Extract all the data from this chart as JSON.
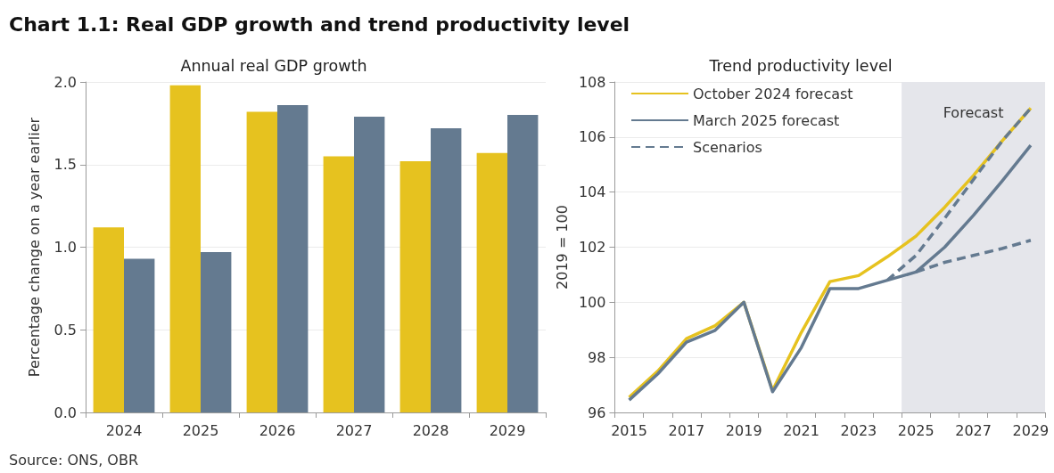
{
  "chart_data": [
    {
      "type": "bar",
      "title": "Annual real GDP growth",
      "ylabel": "Percentage change on a year earlier",
      "categories": [
        "2024",
        "2025",
        "2026",
        "2027",
        "2028",
        "2029"
      ],
      "series": [
        {
          "color": "#e6c21f",
          "values": [
            1.12,
            1.98,
            1.82,
            1.55,
            1.52,
            1.57
          ]
        },
        {
          "color": "#647a90",
          "values": [
            0.93,
            0.97,
            1.86,
            1.79,
            1.72,
            1.8
          ]
        }
      ],
      "ylim": [
        0,
        2
      ],
      "yticks": [
        {
          "value": 0,
          "label": "0.0"
        },
        0.5,
        {
          "value": 1,
          "label": "1.0"
        },
        1.5,
        {
          "value": 2,
          "label": "2.0"
        }
      ],
      "grid": "y",
      "legend": false,
      "annotations": [
        "Chart 1.1: Real GDP growth and trend productivity level",
        "Source: ONS, OBR"
      ]
    },
    {
      "type": "line",
      "title": "Trend productivity level",
      "ylabel": "2019 = 100",
      "categories": [
        "2015",
        null,
        "2017",
        null,
        "2019",
        null,
        "2021",
        null,
        "2023",
        null,
        "2025",
        null,
        "2027",
        null,
        "2029"
      ],
      "series": [
        {
          "name": "October 2024 forecast",
          "color": "#e6c21f",
          "values": [
            96.55,
            97.5,
            98.68,
            99.15,
            100,
            96.8,
            98.9,
            100.75,
            100.97,
            101.65,
            102.4,
            103.45,
            104.6,
            105.85,
            107.05
          ]
        },
        {
          "name": "March 2025 forecast",
          "color": "#647a90",
          "values": [
            96.45,
            97.4,
            98.55,
            98.98,
            100,
            96.75,
            98.35,
            100.5,
            100.5,
            100.8,
            101.1,
            102.0,
            103.15,
            104.4,
            105.7
          ]
        },
        {
          "name": "Scenarios",
          "color": "#647a90",
          "line_style": "dashed",
          "values": [
            null,
            null,
            null,
            null,
            null,
            null,
            null,
            null,
            null,
            100.8,
            101.7,
            103.05,
            104.45,
            105.85,
            107.05
          ]
        },
        {
          "color": "#647a90",
          "line_style": "dashed",
          "values": [
            null,
            null,
            null,
            null,
            null,
            null,
            null,
            null,
            null,
            null,
            101.1,
            101.45,
            101.7,
            101.95,
            102.25
          ]
        }
      ],
      "ylim": [
        96,
        108
      ],
      "yticks": [
        96,
        98,
        100,
        102,
        104,
        106,
        108
      ],
      "grid": "y",
      "legend": "top left",
      "marker": "none",
      "line_style": "solid",
      "bands": [
        {
          "axis": "x",
          "from": "2025",
          "to": "2029",
          "label": "Forecast",
          "color": "#e5e6eb"
        }
      ]
    }
  ]
}
